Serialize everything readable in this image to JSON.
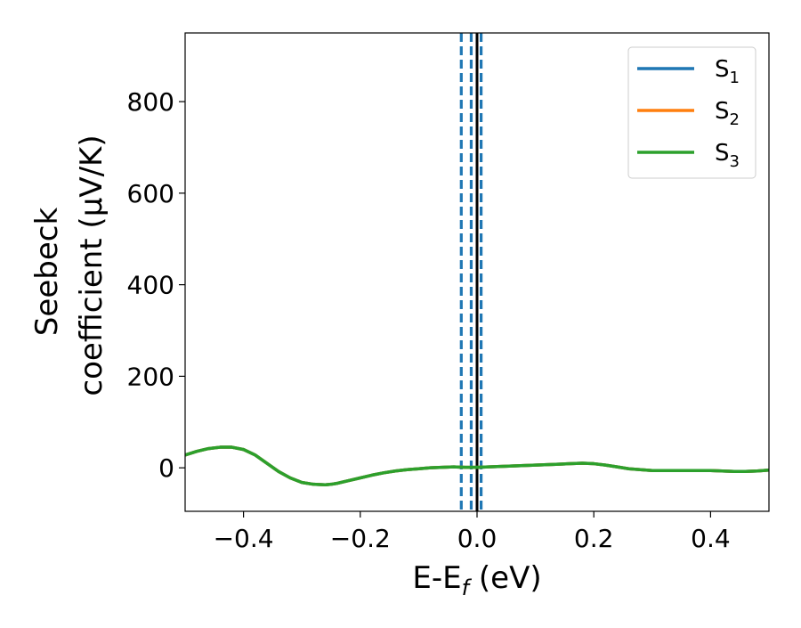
{
  "chart_data": {
    "type": "line",
    "title": "",
    "xlabel": {
      "main": "E-E",
      "sub": "f",
      "suffix": " (eV)"
    },
    "ylabel": {
      "line1": "Seebeck",
      "line2": "coefficient  (μV/K)"
    },
    "xlim": [
      -0.5,
      0.5
    ],
    "ylim": [
      -95,
      950
    ],
    "xticks": [
      -0.4,
      -0.2,
      0.0,
      0.2,
      0.4
    ],
    "xtick_labels": [
      "−0.4",
      "−0.2",
      "0.0",
      "0.2",
      "0.4"
    ],
    "yticks": [
      0,
      200,
      400,
      600,
      800
    ],
    "ytick_labels": [
      "0",
      "200",
      "400",
      "600",
      "800"
    ],
    "grid": false,
    "legend": {
      "position": "top-right"
    },
    "vlines": [
      {
        "x": 0.0,
        "style": "solid",
        "color": "#000000"
      },
      {
        "x": -0.027,
        "style": "dashed",
        "color": "#1f77b4"
      },
      {
        "x": -0.01,
        "style": "dashed",
        "color": "#1f77b4"
      },
      {
        "x": 0.007,
        "style": "dashed",
        "color": "#1f77b4"
      }
    ],
    "x": [
      -0.5,
      -0.48,
      -0.46,
      -0.44,
      -0.42,
      -0.4,
      -0.38,
      -0.36,
      -0.34,
      -0.32,
      -0.3,
      -0.28,
      -0.26,
      -0.25,
      -0.24,
      -0.22,
      -0.2,
      -0.18,
      -0.16,
      -0.14,
      -0.12,
      -0.1,
      -0.08,
      -0.06,
      -0.04,
      -0.02,
      0.0,
      0.02,
      0.04,
      0.06,
      0.08,
      0.1,
      0.12,
      0.14,
      0.16,
      0.18,
      0.2,
      0.22,
      0.24,
      0.26,
      0.28,
      0.3,
      0.32,
      0.34,
      0.36,
      0.38,
      0.4,
      0.42,
      0.44,
      0.46,
      0.48,
      0.5
    ],
    "series": [
      {
        "name": "S",
        "sub": "1",
        "color": "#1f77b4",
        "values": [
          28,
          36,
          42,
          45,
          45,
          40,
          28,
          10,
          -8,
          -22,
          -32,
          -36,
          -37,
          -36,
          -34,
          -28,
          -22,
          -16,
          -11,
          -7,
          -4,
          -2,
          0,
          1,
          2,
          1,
          1,
          2,
          3,
          4,
          5,
          6,
          7,
          8,
          9,
          10,
          9,
          6,
          2,
          -2,
          -4,
          -6,
          -6,
          -6,
          -6,
          -6,
          -6,
          -7,
          -8,
          -8,
          -7,
          -5
        ]
      },
      {
        "name": "S",
        "sub": "2",
        "color": "#ff7f0e",
        "values": [
          28,
          36,
          42,
          45,
          45,
          40,
          28,
          10,
          -8,
          -22,
          -32,
          -36,
          -37,
          -36,
          -34,
          -28,
          -22,
          -16,
          -11,
          -7,
          -4,
          -2,
          0,
          1,
          2,
          1,
          1,
          2,
          3,
          4,
          5,
          6,
          7,
          8,
          9,
          10,
          9,
          6,
          2,
          -2,
          -4,
          -6,
          -6,
          -6,
          -6,
          -6,
          -6,
          -7,
          -8,
          -8,
          -7,
          -5
        ]
      },
      {
        "name": "S",
        "sub": "3",
        "color": "#2ca02c",
        "values": [
          28,
          36,
          42,
          45,
          45,
          40,
          28,
          10,
          -8,
          -22,
          -32,
          -36,
          -37,
          -36,
          -34,
          -28,
          -22,
          -16,
          -11,
          -7,
          -4,
          -2,
          0,
          1,
          2,
          1,
          1,
          2,
          3,
          4,
          5,
          6,
          7,
          8,
          9,
          10,
          9,
          6,
          2,
          -2,
          -4,
          -6,
          -6,
          -6,
          -6,
          -6,
          -6,
          -7,
          -8,
          -8,
          -7,
          -5
        ]
      }
    ]
  }
}
